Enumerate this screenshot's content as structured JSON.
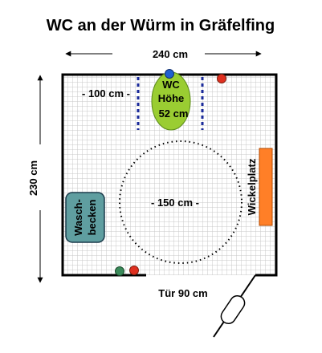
{
  "title": "WC an der Würm  in Gräfelfing",
  "dimensions": {
    "width": "240 cm",
    "height": "230 cm",
    "side_clearance": "- 100 cm -",
    "turning_circle": "- 150 cm -"
  },
  "fixtures": {
    "wc_label_1": "WC",
    "wc_label_2": "Höhe",
    "wc_label_3": "52 cm",
    "sink_label_1": "Wasch-",
    "sink_label_2": "becken",
    "changing_table": "Wickelplatz"
  },
  "door": {
    "label": "Tür 90 cm"
  },
  "colors": {
    "wall": "#000000",
    "floor_grid": "#c9c9c9",
    "toilet_fill": "#9acd32",
    "sink_fill": "#5f9ea0",
    "changing_table_fill": "#ff7f27",
    "red_button": "#e03020",
    "blue_button": "#2060d0",
    "green_button": "#3a8a5a",
    "grab_bar": "#1a2a9a"
  }
}
